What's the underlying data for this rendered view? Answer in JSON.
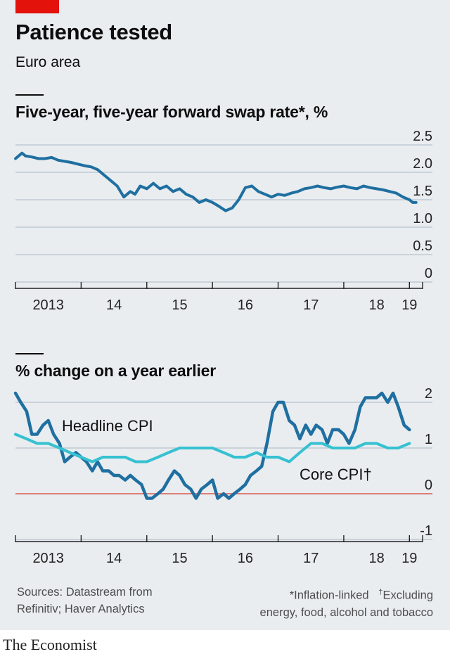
{
  "header": {
    "title": "Patience tested",
    "subtitle": "Euro area"
  },
  "colors": {
    "accent_red": "#e3120b",
    "dark_blue": "#1f6fa0",
    "light_blue": "#36c1d1",
    "zero_line_red": "#d7584f",
    "grid": "#b7c3cc"
  },
  "x_axis_labels": [
    "2013",
    "14",
    "15",
    "16",
    "17",
    "18",
    "19"
  ],
  "chart_data": [
    {
      "type": "line",
      "title": "Five-year, five-year forward swap rate*, %",
      "y_tick_labels": [
        "2.5",
        "2.0",
        "1.5",
        "1.0",
        "0.5",
        "0"
      ],
      "ylim": [
        0,
        2.5
      ],
      "xlim": [
        2013.0,
        2019.35
      ],
      "grid": true,
      "series": [
        {
          "color": "#1f6fa0",
          "x": [
            2013.0,
            2013.05,
            2013.1,
            2013.15,
            2013.25,
            2013.35,
            2013.45,
            2013.55,
            2013.65,
            2013.75,
            2013.85,
            2013.95,
            2014.05,
            2014.15,
            2014.25,
            2014.35,
            2014.45,
            2014.55,
            2014.65,
            2014.75,
            2014.82,
            2014.9,
            2015.0,
            2015.1,
            2015.2,
            2015.3,
            2015.4,
            2015.5,
            2015.6,
            2015.7,
            2015.8,
            2015.9,
            2016.0,
            2016.1,
            2016.2,
            2016.3,
            2016.4,
            2016.5,
            2016.6,
            2016.7,
            2016.8,
            2016.9,
            2017.0,
            2017.1,
            2017.2,
            2017.3,
            2017.4,
            2017.5,
            2017.6,
            2017.7,
            2017.8,
            2017.9,
            2018.0,
            2018.1,
            2018.2,
            2018.3,
            2018.4,
            2018.5,
            2018.6,
            2018.7,
            2018.8,
            2018.9,
            2019.0,
            2019.05,
            2019.1
          ],
          "y": [
            2.25,
            2.3,
            2.35,
            2.3,
            2.28,
            2.25,
            2.25,
            2.27,
            2.22,
            2.2,
            2.18,
            2.15,
            2.12,
            2.1,
            2.05,
            1.95,
            1.85,
            1.75,
            1.55,
            1.65,
            1.6,
            1.75,
            1.7,
            1.8,
            1.7,
            1.75,
            1.65,
            1.7,
            1.6,
            1.55,
            1.45,
            1.5,
            1.45,
            1.38,
            1.3,
            1.35,
            1.5,
            1.72,
            1.75,
            1.65,
            1.6,
            1.55,
            1.6,
            1.58,
            1.62,
            1.65,
            1.7,
            1.72,
            1.75,
            1.72,
            1.7,
            1.73,
            1.75,
            1.72,
            1.7,
            1.75,
            1.72,
            1.7,
            1.68,
            1.65,
            1.62,
            1.55,
            1.5,
            1.45,
            1.45
          ]
        }
      ]
    },
    {
      "type": "line",
      "title": "% change on a year earlier",
      "y_tick_labels": [
        "2",
        "1",
        "0",
        "-1"
      ],
      "ylim": [
        -1,
        2
      ],
      "xlim": [
        2013.0,
        2019.35
      ],
      "grid": true,
      "series": [
        {
          "name": "Headline CPI",
          "color": "#1f6fa0",
          "x": [
            2013.0,
            2013.08,
            2013.17,
            2013.25,
            2013.33,
            2013.42,
            2013.5,
            2013.58,
            2013.67,
            2013.75,
            2013.83,
            2013.92,
            2014.0,
            2014.08,
            2014.17,
            2014.25,
            2014.33,
            2014.42,
            2014.5,
            2014.58,
            2014.67,
            2014.75,
            2014.83,
            2014.92,
            2015.0,
            2015.08,
            2015.17,
            2015.25,
            2015.33,
            2015.42,
            2015.5,
            2015.58,
            2015.67,
            2015.75,
            2015.83,
            2015.92,
            2016.0,
            2016.08,
            2016.17,
            2016.25,
            2016.33,
            2016.42,
            2016.5,
            2016.58,
            2016.67,
            2016.75,
            2016.83,
            2016.92,
            2017.0,
            2017.08,
            2017.17,
            2017.25,
            2017.33,
            2017.42,
            2017.5,
            2017.58,
            2017.67,
            2017.75,
            2017.83,
            2017.92,
            2018.0,
            2018.08,
            2018.17,
            2018.25,
            2018.33,
            2018.42,
            2018.5,
            2018.58,
            2018.67,
            2018.75,
            2018.83,
            2018.92,
            2019.0
          ],
          "y": [
            2.2,
            2.0,
            1.8,
            1.3,
            1.3,
            1.5,
            1.6,
            1.3,
            1.1,
            0.7,
            0.8,
            0.9,
            0.8,
            0.7,
            0.5,
            0.7,
            0.5,
            0.5,
            0.4,
            0.4,
            0.3,
            0.4,
            0.3,
            0.2,
            -0.1,
            -0.1,
            0.0,
            0.1,
            0.3,
            0.5,
            0.4,
            0.2,
            0.1,
            -0.1,
            0.1,
            0.2,
            0.3,
            -0.1,
            0.0,
            -0.1,
            0.0,
            0.1,
            0.2,
            0.4,
            0.5,
            0.6,
            1.1,
            1.8,
            2.0,
            2.0,
            1.6,
            1.5,
            1.2,
            1.5,
            1.3,
            1.5,
            1.4,
            1.1,
            1.4,
            1.4,
            1.3,
            1.1,
            1.4,
            1.9,
            2.1,
            2.1,
            2.1,
            2.2,
            2.0,
            2.2,
            1.9,
            1.5,
            1.4
          ]
        },
        {
          "name": "Core CPI†",
          "color": "#36c1d1",
          "x": [
            2013.0,
            2013.17,
            2013.33,
            2013.5,
            2013.67,
            2013.83,
            2014.0,
            2014.17,
            2014.33,
            2014.5,
            2014.67,
            2014.83,
            2015.0,
            2015.17,
            2015.33,
            2015.5,
            2015.67,
            2015.83,
            2016.0,
            2016.17,
            2016.33,
            2016.5,
            2016.67,
            2016.83,
            2017.0,
            2017.17,
            2017.33,
            2017.5,
            2017.67,
            2017.83,
            2018.0,
            2018.17,
            2018.33,
            2018.5,
            2018.67,
            2018.83,
            2019.0
          ],
          "y": [
            1.3,
            1.2,
            1.1,
            1.1,
            1.0,
            0.9,
            0.8,
            0.7,
            0.8,
            0.8,
            0.8,
            0.7,
            0.7,
            0.8,
            0.9,
            1.0,
            1.0,
            1.0,
            1.0,
            0.9,
            0.8,
            0.8,
            0.9,
            0.8,
            0.8,
            0.7,
            0.9,
            1.1,
            1.1,
            1.0,
            1.0,
            1.0,
            1.1,
            1.1,
            1.0,
            1.0,
            1.1
          ]
        }
      ]
    }
  ],
  "footer": {
    "sources_line1": "Sources: Datastream from",
    "sources_line2": "Refinitiv; Haver Analytics",
    "note1": "*Inflation-linked",
    "note2_dagger": "†",
    "note2": "Excluding",
    "note3": "energy, food, alcohol and tobacco",
    "brand": "The Economist"
  }
}
